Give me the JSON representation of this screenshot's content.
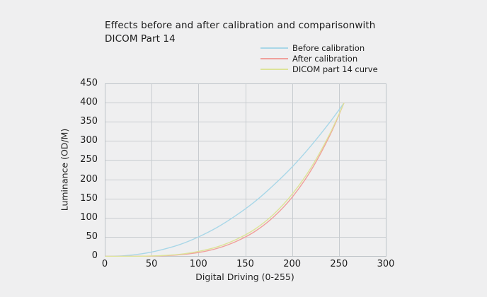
{
  "page": {
    "background": "#efeff0"
  },
  "title": {
    "line1": "Effects before and after calibration and comparisonwith",
    "line2": "DICOM Part 14"
  },
  "chart_data": {
    "type": "line",
    "title": "Effects before and after calibration and comparisonwith DICOM Part 14",
    "xlabel": "Digital Driving (0-255)",
    "ylabel": "Luminance (OD/M)",
    "xlim": [
      0,
      300
    ],
    "ylim": [
      0,
      450
    ],
    "x_ticks": [
      0,
      50,
      100,
      150,
      200,
      250,
      300
    ],
    "y_ticks": [
      0,
      50,
      100,
      150,
      200,
      250,
      300,
      350,
      400,
      450
    ],
    "grid": true,
    "legend_position": "top-right-above-plot",
    "x": [
      0,
      20,
      40,
      60,
      80,
      100,
      120,
      140,
      160,
      180,
      200,
      220,
      240,
      255
    ],
    "series": [
      {
        "name": "Before calibration",
        "color": "#a9d7e8",
        "values": [
          0,
          1.5,
          7,
          17,
          31,
          51,
          76,
          107,
          143,
          186,
          234,
          289,
          350,
          400
        ]
      },
      {
        "name": "After calibration",
        "color": "#f0a09b",
        "values": [
          0,
          0,
          0.3,
          1.4,
          4.3,
          10,
          21,
          39,
          65,
          103,
          155,
          225,
          316,
          400
        ]
      },
      {
        "name": "DICOM part 14 curve",
        "color": "#dde398",
        "values": [
          0,
          0,
          0.4,
          2,
          5.5,
          13,
          25,
          44,
          71,
          110,
          163,
          232,
          320,
          400
        ]
      }
    ],
    "colors": {
      "grid": "#c8ccd0",
      "border": "#bdc3c8",
      "text": "#1d1d1d"
    }
  }
}
